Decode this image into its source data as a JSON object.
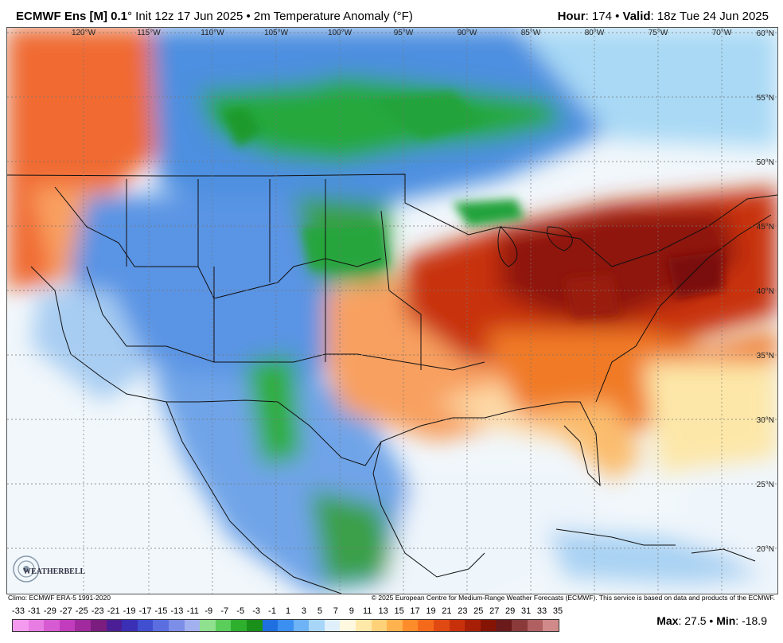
{
  "header": {
    "model_bold": "ECMWF Ens [M] 0.1",
    "model_degree": "°",
    "init": " Init 12z 17 Jun 2025 • 2m Temperature Anomaly (°F)",
    "hour_label": "Hour",
    "hour_value": ": 174 • ",
    "valid_label": "Valid",
    "valid_value": ": 18z Tue 24 Jun 2025"
  },
  "map": {
    "lon_labels": [
      "120°W",
      "115°W",
      "110°W",
      "105°W",
      "100°W",
      "95°W",
      "90°W",
      "85°W",
      "80°W",
      "75°W",
      "70°W"
    ],
    "lat_labels": [
      "60°N",
      "55°N",
      "50°N",
      "45°N",
      "40°N",
      "35°N",
      "30°N",
      "25°N",
      "20°N"
    ],
    "logo_text": "WEATHERBELL"
  },
  "footer": {
    "climo": "Climo: ECMWF ERA-5 1991-2020",
    "copyright": "© 2025 European Centre for Medium-Range Weather Forecasts (ECMWF). This service is based on data and products of the ECMWF."
  },
  "colorbar": {
    "labels": [
      "-33",
      "-31",
      "-29",
      "-27",
      "-25",
      "-23",
      "-21",
      "-19",
      "-17",
      "-15",
      "-13",
      "-11",
      "-9",
      "-7",
      "-5",
      "-3",
      "-1",
      "1",
      "3",
      "5",
      "7",
      "9",
      "11",
      "13",
      "15",
      "17",
      "19",
      "21",
      "23",
      "25",
      "27",
      "29",
      "31",
      "33",
      "35"
    ],
    "colors": [
      "#f49bf0",
      "#e77de3",
      "#d65ad2",
      "#c13dbe",
      "#a02a9e",
      "#7a1d7f",
      "#4b1e96",
      "#3a2fb5",
      "#3f4fd0",
      "#5a6ee0",
      "#7c8ee8",
      "#a2b0f0",
      "#8fe08f",
      "#5acd5a",
      "#2eb02e",
      "#1a8f1a",
      "#1f6fe0",
      "#3b8ff0",
      "#6db3f5",
      "#a8d6f8",
      "#dff0fb",
      "#fff8e0",
      "#ffe9a8",
      "#ffd27a",
      "#ffb24d",
      "#ff8c2a",
      "#f46a1a",
      "#e04a12",
      "#c8300c",
      "#a81f08",
      "#861405",
      "#6a1a1a",
      "#8a3a3a",
      "#b06060",
      "#d08a8a"
    ]
  },
  "stats": {
    "max_label": "Max",
    "max_value": ": 27.5 • ",
    "min_label": "Min",
    "min_value": ": -18.9"
  }
}
